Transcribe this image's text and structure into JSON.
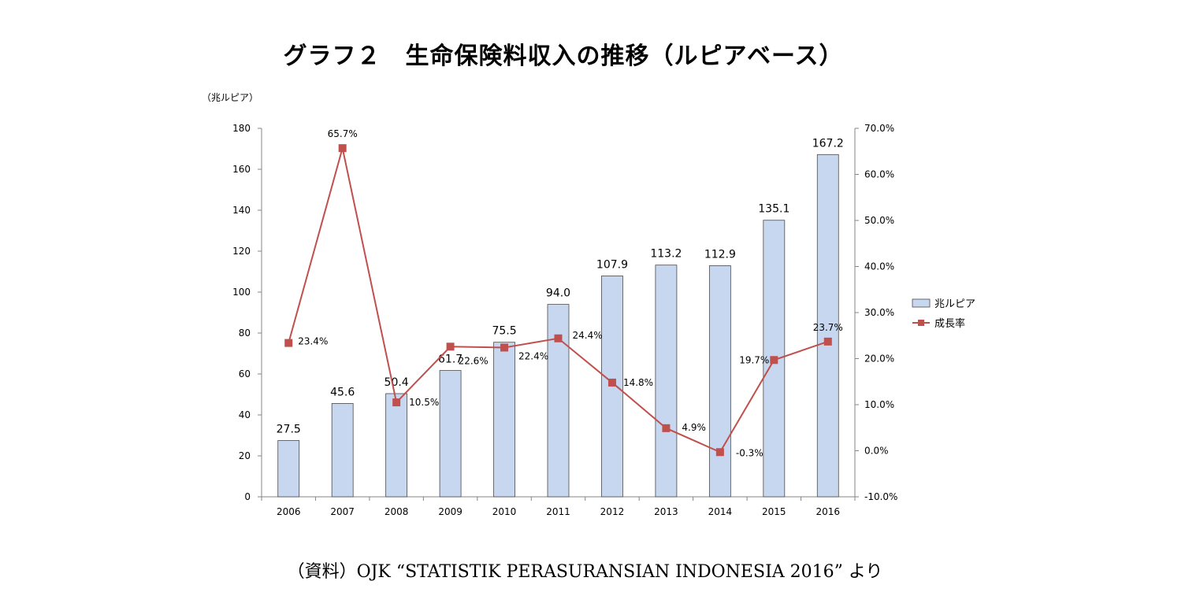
{
  "chart_data": {
    "type": "bar+line",
    "title": "グラフ２　生命保険料収入の推移（ルピアベース）",
    "left_axis_unit": "（兆ルピア）",
    "categories": [
      "2006",
      "2007",
      "2008",
      "2009",
      "2010",
      "2011",
      "2012",
      "2013",
      "2014",
      "2015",
      "2016"
    ],
    "series": [
      {
        "name": "兆ルピア",
        "type": "bar",
        "axis": "left",
        "color": "#c6d7ef",
        "values": [
          27.5,
          45.6,
          50.4,
          61.7,
          75.5,
          94.0,
          107.9,
          113.2,
          112.9,
          135.1,
          167.2
        ],
        "labels": [
          "27.5",
          "45.6",
          "50.4",
          "61.7",
          "75.5",
          "94.0",
          "107.9",
          "113.2",
          "112.9",
          "135.1",
          "167.2"
        ]
      },
      {
        "name": "成長率",
        "type": "line",
        "axis": "right",
        "color": "#c0504d",
        "values": [
          23.4,
          65.7,
          10.5,
          22.6,
          22.4,
          24.4,
          14.8,
          4.9,
          -0.3,
          19.7,
          23.7
        ],
        "labels": [
          "23.4%",
          "65.7%",
          "10.5%",
          "22.6%",
          "22.4%",
          "24.4%",
          "14.8%",
          "4.9%",
          "-0.3%",
          "19.7%",
          "23.7%"
        ]
      }
    ],
    "left_axis": {
      "min": 0,
      "max": 180,
      "step": 20,
      "ticks": [
        "0",
        "20",
        "40",
        "60",
        "80",
        "100",
        "120",
        "140",
        "160",
        "180"
      ]
    },
    "right_axis": {
      "min": -10,
      "max": 70,
      "step": 10,
      "ticks": [
        "-10.0%",
        "0.0%",
        "10.0%",
        "20.0%",
        "30.0%",
        "40.0%",
        "50.0%",
        "60.0%",
        "70.0%"
      ]
    },
    "legend_position": "right",
    "grid": false
  },
  "source_note": "（資料）OJK “STATISTIK PERASURANSIAN INDONESIA 2016” より"
}
